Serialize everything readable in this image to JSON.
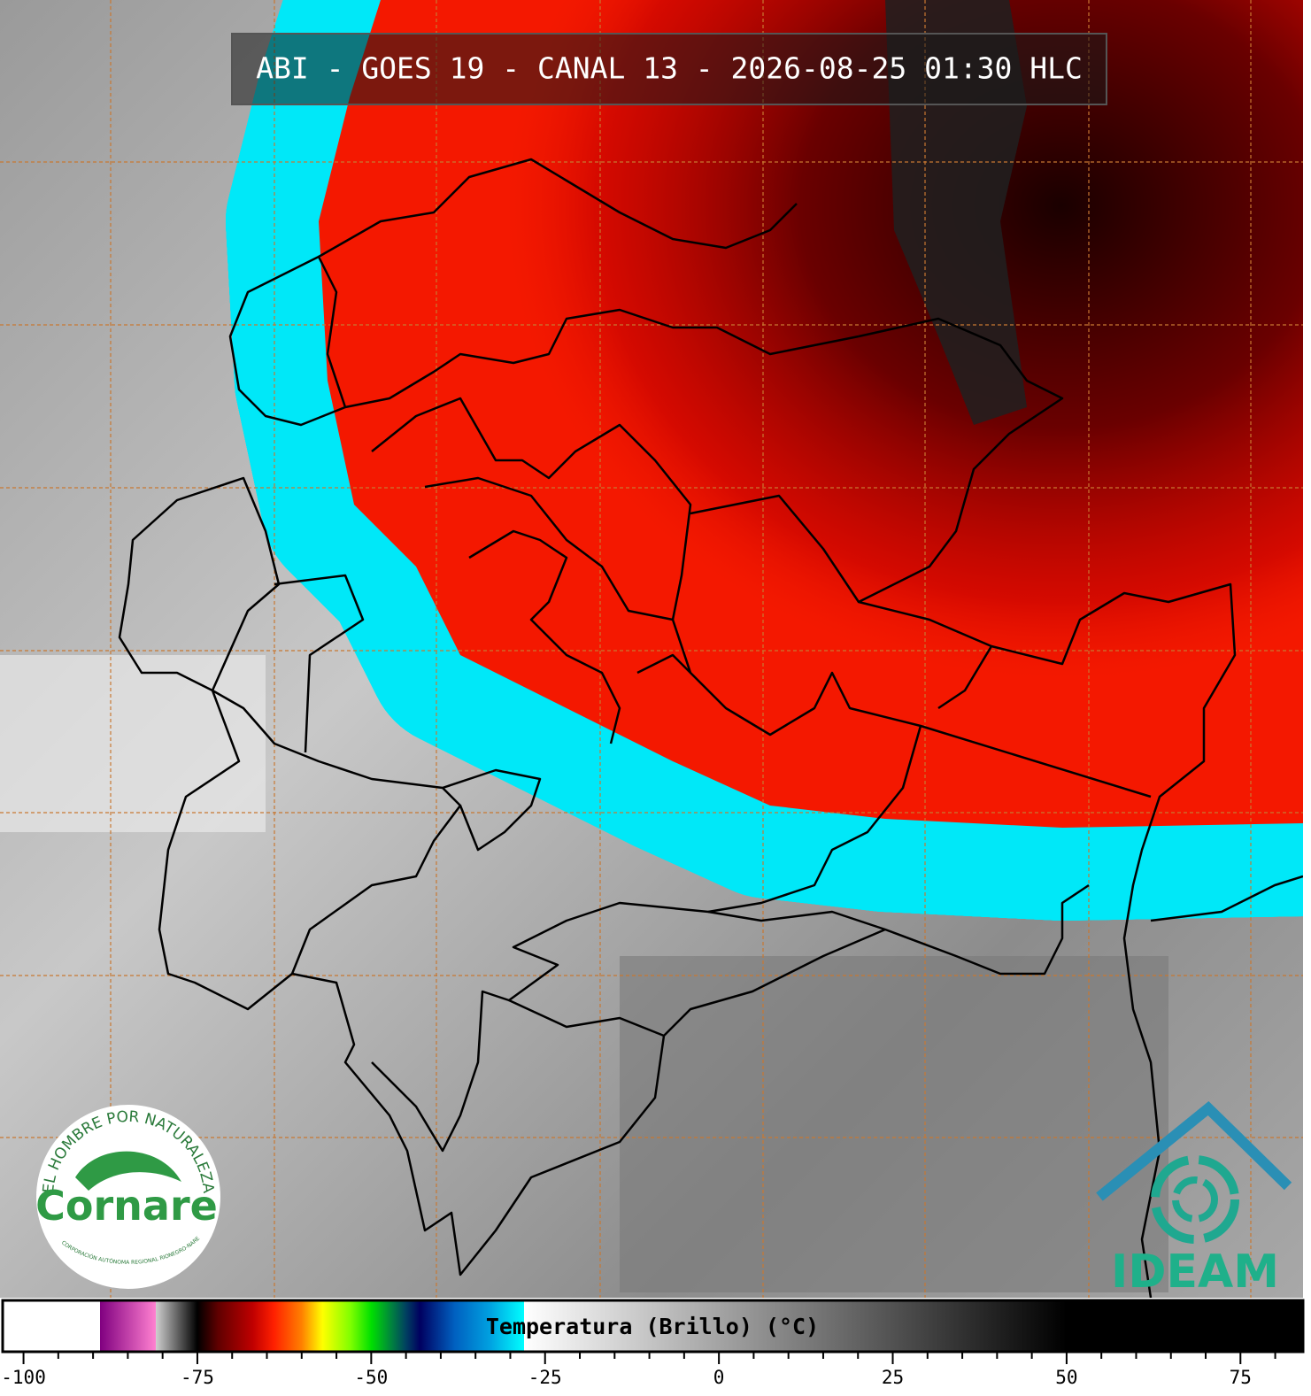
{
  "header": {
    "title": "ABI - GOES 19 - CANAL 13 - 2026-08-25 01:30 HLC"
  },
  "colorbar": {
    "label": "Temperatura (Brillo) (°C)",
    "range": [
      -103,
      84
    ],
    "ticks": [
      -100,
      -75,
      -50,
      -25,
      0,
      25,
      50,
      75
    ],
    "minor_ticks": [
      -95,
      -90,
      -85,
      -80,
      -70,
      -65,
      -60,
      -55,
      -45,
      -40,
      -35,
      -30,
      -20,
      -15,
      -10,
      -5,
      5,
      10,
      15,
      20,
      30,
      35,
      40,
      45,
      55,
      60,
      65,
      70,
      80
    ],
    "stops": [
      {
        "value": -103,
        "color": "#ffffff"
      },
      {
        "value": -89,
        "color": "#ffffff"
      },
      {
        "value": -89,
        "color": "#800080"
      },
      {
        "value": -81,
        "color": "#ff80d0"
      },
      {
        "value": -81,
        "color": "#d0d0d0"
      },
      {
        "value": -75,
        "color": "#000000"
      },
      {
        "value": -72,
        "color": "#600000"
      },
      {
        "value": -67,
        "color": "#c00000"
      },
      {
        "value": -64,
        "color": "#ff2000"
      },
      {
        "value": -60,
        "color": "#ff8000"
      },
      {
        "value": -57,
        "color": "#ffff00"
      },
      {
        "value": -53,
        "color": "#80ff00"
      },
      {
        "value": -50,
        "color": "#00e000"
      },
      {
        "value": -47,
        "color": "#008040"
      },
      {
        "value": -45,
        "color": "#004060"
      },
      {
        "value": -43,
        "color": "#000060"
      },
      {
        "value": -38,
        "color": "#0060c0"
      },
      {
        "value": -33,
        "color": "#00a0e0"
      },
      {
        "value": -28,
        "color": "#00ffff"
      },
      {
        "value": -28,
        "color": "#ffffff"
      },
      {
        "value": 50,
        "color": "#000000"
      },
      {
        "value": 84,
        "color": "#000000"
      }
    ]
  },
  "logos": {
    "cornare": {
      "motto": "EL HOMBRE POR NATURALEZA",
      "name": "Cornare",
      "subtitle": "CORPORACIÓN AUTÓNOMA REGIONAL RIONEGRO-NARE"
    },
    "ideam": {
      "name": "IDEAM"
    }
  }
}
